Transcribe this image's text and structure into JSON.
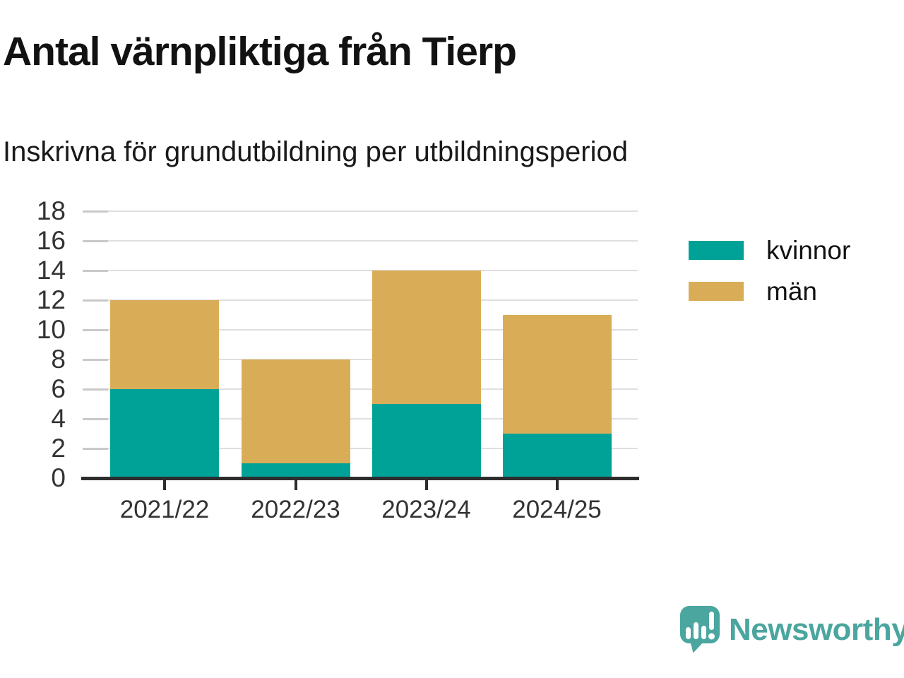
{
  "header": {
    "title": "Antal värnpliktiga från Tierp",
    "subtitle": "Inskrivna för grundutbildning per utbildningsperiod"
  },
  "chart_data": {
    "type": "bar",
    "stacked": true,
    "title": "Antal värnpliktiga från Tierp",
    "subtitle": "Inskrivna för grundutbildning per utbildningsperiod",
    "categories": [
      "2021/22",
      "2022/23",
      "2023/24",
      "2024/25"
    ],
    "series": [
      {
        "name": "kvinnor",
        "color": "#00a297",
        "values": [
          6,
          1,
          5,
          3
        ]
      },
      {
        "name": "män",
        "color": "#d9ad58",
        "values": [
          6,
          7,
          9,
          8
        ]
      }
    ],
    "totals": [
      12,
      8,
      14,
      11
    ],
    "xlabel": "",
    "ylabel": "",
    "ylim": [
      0,
      18
    ],
    "ytick_step": 2,
    "grid": true,
    "legend_position": "right"
  },
  "branding": {
    "name": "Newsworthy",
    "logo_icon": "newsworthy-speech-bubble-bar-chart-icon",
    "brand_color": "#4aa69f"
  }
}
